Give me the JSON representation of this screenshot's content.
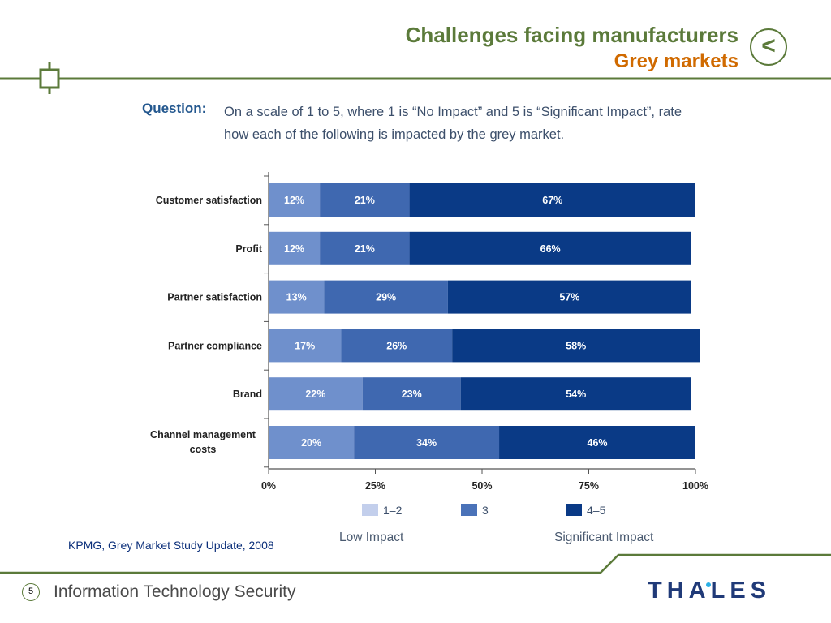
{
  "header": {
    "title": "Challenges facing manufacturers",
    "subtitle": "Grey markets",
    "back_label": "<"
  },
  "question": {
    "label": "Question:",
    "text": "On a scale of 1 to 5, where 1 is “No Impact” and 5 is “Significant Impact”, rate how each of the following is impacted by the grey market."
  },
  "chart_data": {
    "type": "bar",
    "orientation": "horizontal",
    "stacked": true,
    "categories": [
      "Customer satisfaction",
      "Profit",
      "Partner satisfaction",
      "Partner compliance",
      "Brand",
      "Channel management costs"
    ],
    "series": [
      {
        "name": "1–2",
        "color": "#6f90cc",
        "values": [
          12,
          12,
          13,
          17,
          22,
          20
        ]
      },
      {
        "name": "3",
        "color": "#3f68b0",
        "values": [
          21,
          21,
          29,
          26,
          23,
          34
        ]
      },
      {
        "name": "4–5",
        "color": "#0a3a86",
        "values": [
          67,
          66,
          57,
          58,
          54,
          46
        ]
      }
    ],
    "xlim": [
      0,
      100
    ],
    "x_ticks": [
      "0%",
      "25%",
      "50%",
      "75%",
      "100%"
    ],
    "legend_placement": "bottom",
    "legend_colors": [
      "#c3cfec",
      "#4a72b8",
      "#0a3a86"
    ],
    "legend_captions": {
      "low": "Low Impact",
      "high": "Significant Impact"
    }
  },
  "footer": {
    "source": "KPMG, Grey Market Study Update, 2008",
    "page_number": "5",
    "text": "Information Technology Security",
    "logo": "THALES"
  },
  "colors": {
    "accent_green": "#5b7a3a",
    "accent_orange": "#d06a00",
    "brand_blue": "#203a78"
  }
}
